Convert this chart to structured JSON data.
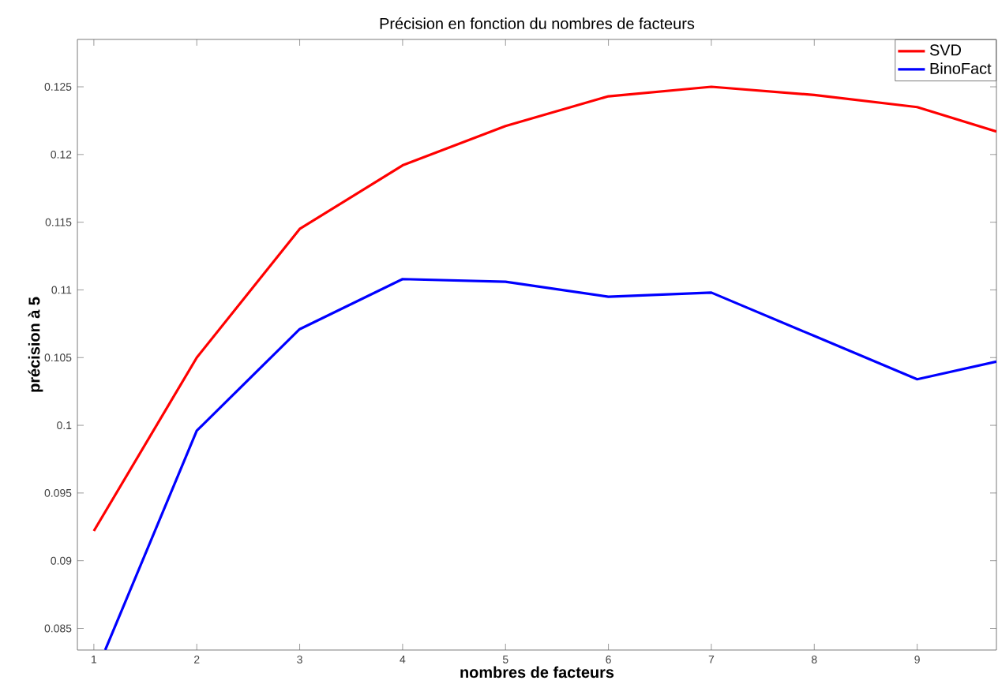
{
  "chart_data": {
    "type": "line",
    "title": "Précision en fonction du nombres de facteurs",
    "xlabel": "nombres de facteurs",
    "ylabel": "précision à 5",
    "xlim": [
      0.84,
      9.77
    ],
    "ylim": [
      0.0834,
      0.1285
    ],
    "xticks": [
      1,
      2,
      3,
      4,
      5,
      6,
      7,
      8,
      9
    ],
    "yticks": [
      0.085,
      0.09,
      0.095,
      0.1,
      0.105,
      0.11,
      0.115,
      0.12,
      0.125
    ],
    "grid": false,
    "legend": "top right",
    "line_style": "solid",
    "marker": "none",
    "series": [
      {
        "name": "SVD",
        "color": "#ff0000",
        "x": [
          1,
          2,
          3,
          4,
          5,
          6,
          7,
          8,
          9,
          9.77
        ],
        "values": [
          0.0922,
          0.105,
          0.1145,
          0.1192,
          0.1221,
          0.1243,
          0.125,
          0.1244,
          0.1235,
          0.1217
        ]
      },
      {
        "name": "BinoFact",
        "color": "#0000ff",
        "x": [
          1.11,
          2,
          3,
          4,
          5,
          6,
          7,
          8,
          9,
          9.77
        ],
        "values": [
          0.0834,
          0.0996,
          0.1071,
          0.1108,
          0.1106,
          0.1095,
          0.1098,
          0.1066,
          0.1034,
          0.1047
        ]
      }
    ]
  }
}
